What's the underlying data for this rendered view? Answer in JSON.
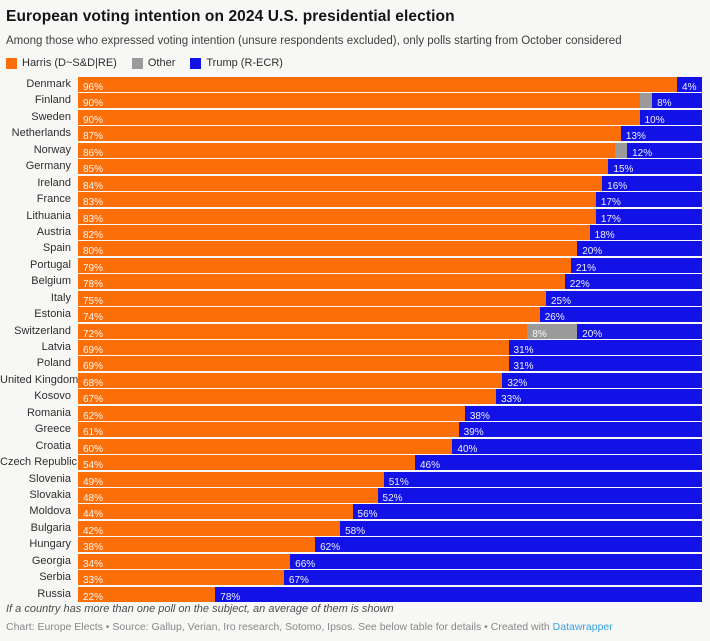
{
  "header": {
    "title": "European voting intention on 2024 U.S. presidential election",
    "subtitle": "Among those who expressed voting intention (unsure respondents excluded), only polls starting from October considered"
  },
  "legend": [
    {
      "name": "harris",
      "label": "Harris (D~S&D|RE)",
      "color": "#fc6e08"
    },
    {
      "name": "other",
      "label": "Other",
      "color": "#9a9a9a"
    },
    {
      "name": "trump",
      "label": "Trump (R-ECR)",
      "color": "#1212e6"
    }
  ],
  "colors": {
    "harris": "#fc6e08",
    "other": "#9a9a9a",
    "trump": "#1212e6",
    "background": "#f7f7f5",
    "link": "#3aa3dc"
  },
  "chart_data": {
    "type": "bar",
    "stacked": true,
    "orientation": "horizontal",
    "unit": "%",
    "xlim": [
      0,
      100
    ],
    "series_names": [
      "Harris (D~S&D|RE)",
      "Other",
      "Trump (R-ECR)"
    ],
    "rows": [
      {
        "country": "Denmark",
        "harris": 96,
        "other": 0,
        "trump": 4
      },
      {
        "country": "Finland",
        "harris": 90,
        "other": 2,
        "trump": 8
      },
      {
        "country": "Sweden",
        "harris": 90,
        "other": 0,
        "trump": 10
      },
      {
        "country": "Netherlands",
        "harris": 87,
        "other": 0,
        "trump": 13
      },
      {
        "country": "Norway",
        "harris": 86,
        "other": 2,
        "trump": 12
      },
      {
        "country": "Germany",
        "harris": 85,
        "other": 0,
        "trump": 15
      },
      {
        "country": "Ireland",
        "harris": 84,
        "other": 0,
        "trump": 16
      },
      {
        "country": "France",
        "harris": 83,
        "other": 0,
        "trump": 17
      },
      {
        "country": "Lithuania",
        "harris": 83,
        "other": 0,
        "trump": 17
      },
      {
        "country": "Austria",
        "harris": 82,
        "other": 0,
        "trump": 18
      },
      {
        "country": "Spain",
        "harris": 80,
        "other": 0,
        "trump": 20
      },
      {
        "country": "Portugal",
        "harris": 79,
        "other": 0,
        "trump": 21
      },
      {
        "country": "Belgium",
        "harris": 78,
        "other": 0,
        "trump": 22
      },
      {
        "country": "Italy",
        "harris": 75,
        "other": 0,
        "trump": 25
      },
      {
        "country": "Estonia",
        "harris": 74,
        "other": 0,
        "trump": 26
      },
      {
        "country": "Switzerland",
        "harris": 72,
        "other": 8,
        "trump": 20
      },
      {
        "country": "Latvia",
        "harris": 69,
        "other": 0,
        "trump": 31
      },
      {
        "country": "Poland",
        "harris": 69,
        "other": 0,
        "trump": 31
      },
      {
        "country": "United Kingdom",
        "harris": 68,
        "other": 0,
        "trump": 32
      },
      {
        "country": "Kosovo",
        "harris": 67,
        "other": 0,
        "trump": 33
      },
      {
        "country": "Romania",
        "harris": 62,
        "other": 0,
        "trump": 38
      },
      {
        "country": "Greece",
        "harris": 61,
        "other": 0,
        "trump": 39
      },
      {
        "country": "Croatia",
        "harris": 60,
        "other": 0,
        "trump": 40
      },
      {
        "country": "Czech Republic",
        "harris": 54,
        "other": 0,
        "trump": 46
      },
      {
        "country": "Slovenia",
        "harris": 49,
        "other": 0,
        "trump": 51
      },
      {
        "country": "Slovakia",
        "harris": 48,
        "other": 0,
        "trump": 52
      },
      {
        "country": "Moldova",
        "harris": 44,
        "other": 0,
        "trump": 56
      },
      {
        "country": "Bulgaria",
        "harris": 42,
        "other": 0,
        "trump": 58
      },
      {
        "country": "Hungary",
        "harris": 38,
        "other": 0,
        "trump": 62
      },
      {
        "country": "Georgia",
        "harris": 34,
        "other": 0,
        "trump": 66
      },
      {
        "country": "Serbia",
        "harris": 33,
        "other": 0,
        "trump": 67
      },
      {
        "country": "Russia",
        "harris": 22,
        "other": 0,
        "trump": 78
      }
    ]
  },
  "footer": {
    "note": "If a country has more than one poll on the subject, an average of them is shown",
    "credit_prefix": "Chart: Europe Elects • Source: Gallup, Verian, Iro research, Sotomo, Ipsos. See below table for details • Created with ",
    "credit_link": "Datawrapper"
  }
}
